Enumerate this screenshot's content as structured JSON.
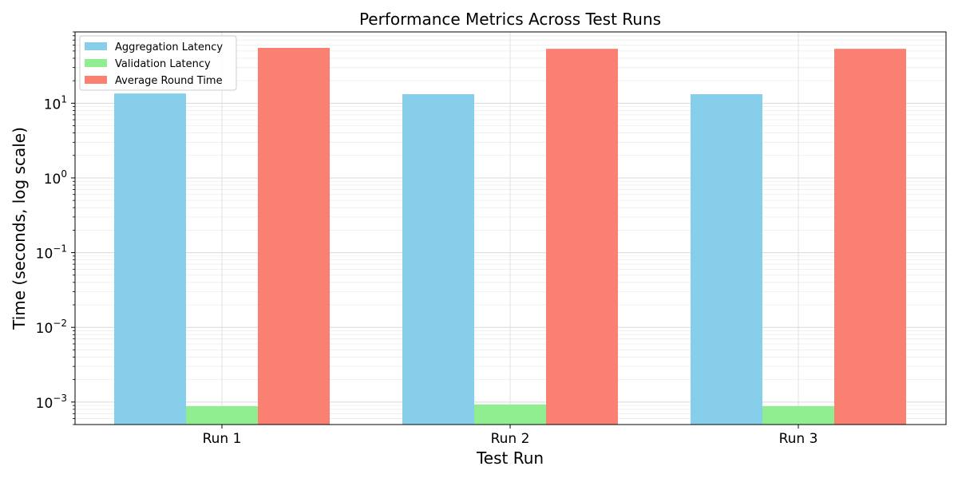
{
  "chart_data": {
    "type": "bar",
    "title": "Performance Metrics Across Test Runs",
    "xlabel": "Test Run",
    "ylabel": "Time (seconds, log scale)",
    "yscale": "log",
    "ylim": [
      0.0005,
      90
    ],
    "grid": true,
    "legend_position": "upper left",
    "categories": [
      "Run 1",
      "Run 2",
      "Run 3"
    ],
    "y_ticks": [
      {
        "value": 0.001,
        "base": "10",
        "exp": "−3"
      },
      {
        "value": 0.01,
        "base": "10",
        "exp": "−2"
      },
      {
        "value": 0.1,
        "base": "10",
        "exp": "−1"
      },
      {
        "value": 1,
        "base": "10",
        "exp": "0"
      },
      {
        "value": 10,
        "base": "10",
        "exp": "1"
      }
    ],
    "series": [
      {
        "name": "Aggregation Latency",
        "color": "#87ceeb",
        "values": [
          13.5,
          13.2,
          13.2
        ]
      },
      {
        "name": "Validation Latency",
        "color": "#90ee90",
        "values": [
          0.00088,
          0.00093,
          0.00088
        ]
      },
      {
        "name": "Average Round Time",
        "color": "#fa8072",
        "values": [
          55,
          53.5,
          53.5
        ]
      }
    ]
  }
}
